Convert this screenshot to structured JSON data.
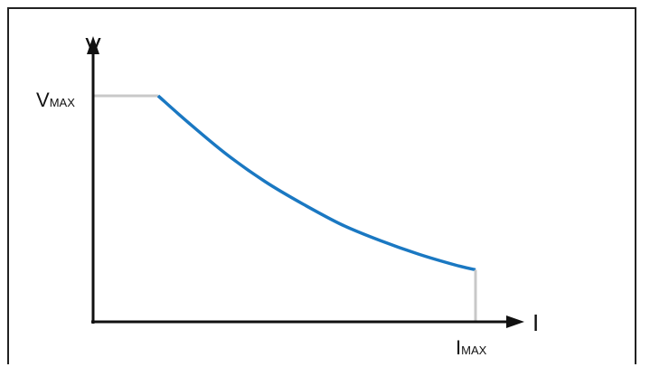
{
  "chart_data": {
    "type": "line",
    "title": "",
    "xlabel": "I",
    "ylabel": "V",
    "y_max_label": {
      "main": "V",
      "sub": "MAX"
    },
    "x_max_label": {
      "main": "I",
      "sub": "MAX"
    },
    "xlim": [
      0,
      1
    ],
    "ylim": [
      0,
      1
    ],
    "grid": false,
    "series": [
      {
        "role": "voltage-limit",
        "color": "#c8c8c8",
        "x": [
          0,
          0.17
        ],
        "y": [
          1,
          1
        ]
      },
      {
        "role": "power-limit",
        "color": "#1a78c2",
        "x": [
          0.17,
          0.25,
          0.35,
          0.45,
          0.55,
          0.65,
          0.75,
          0.85,
          0.95,
          1.0
        ],
        "y": [
          1,
          0.88,
          0.74,
          0.62,
          0.52,
          0.43,
          0.36,
          0.3,
          0.25,
          0.23
        ]
      },
      {
        "role": "current-limit",
        "color": "#c8c8c8",
        "x": [
          1,
          1
        ],
        "y": [
          0.23,
          0
        ]
      }
    ]
  }
}
